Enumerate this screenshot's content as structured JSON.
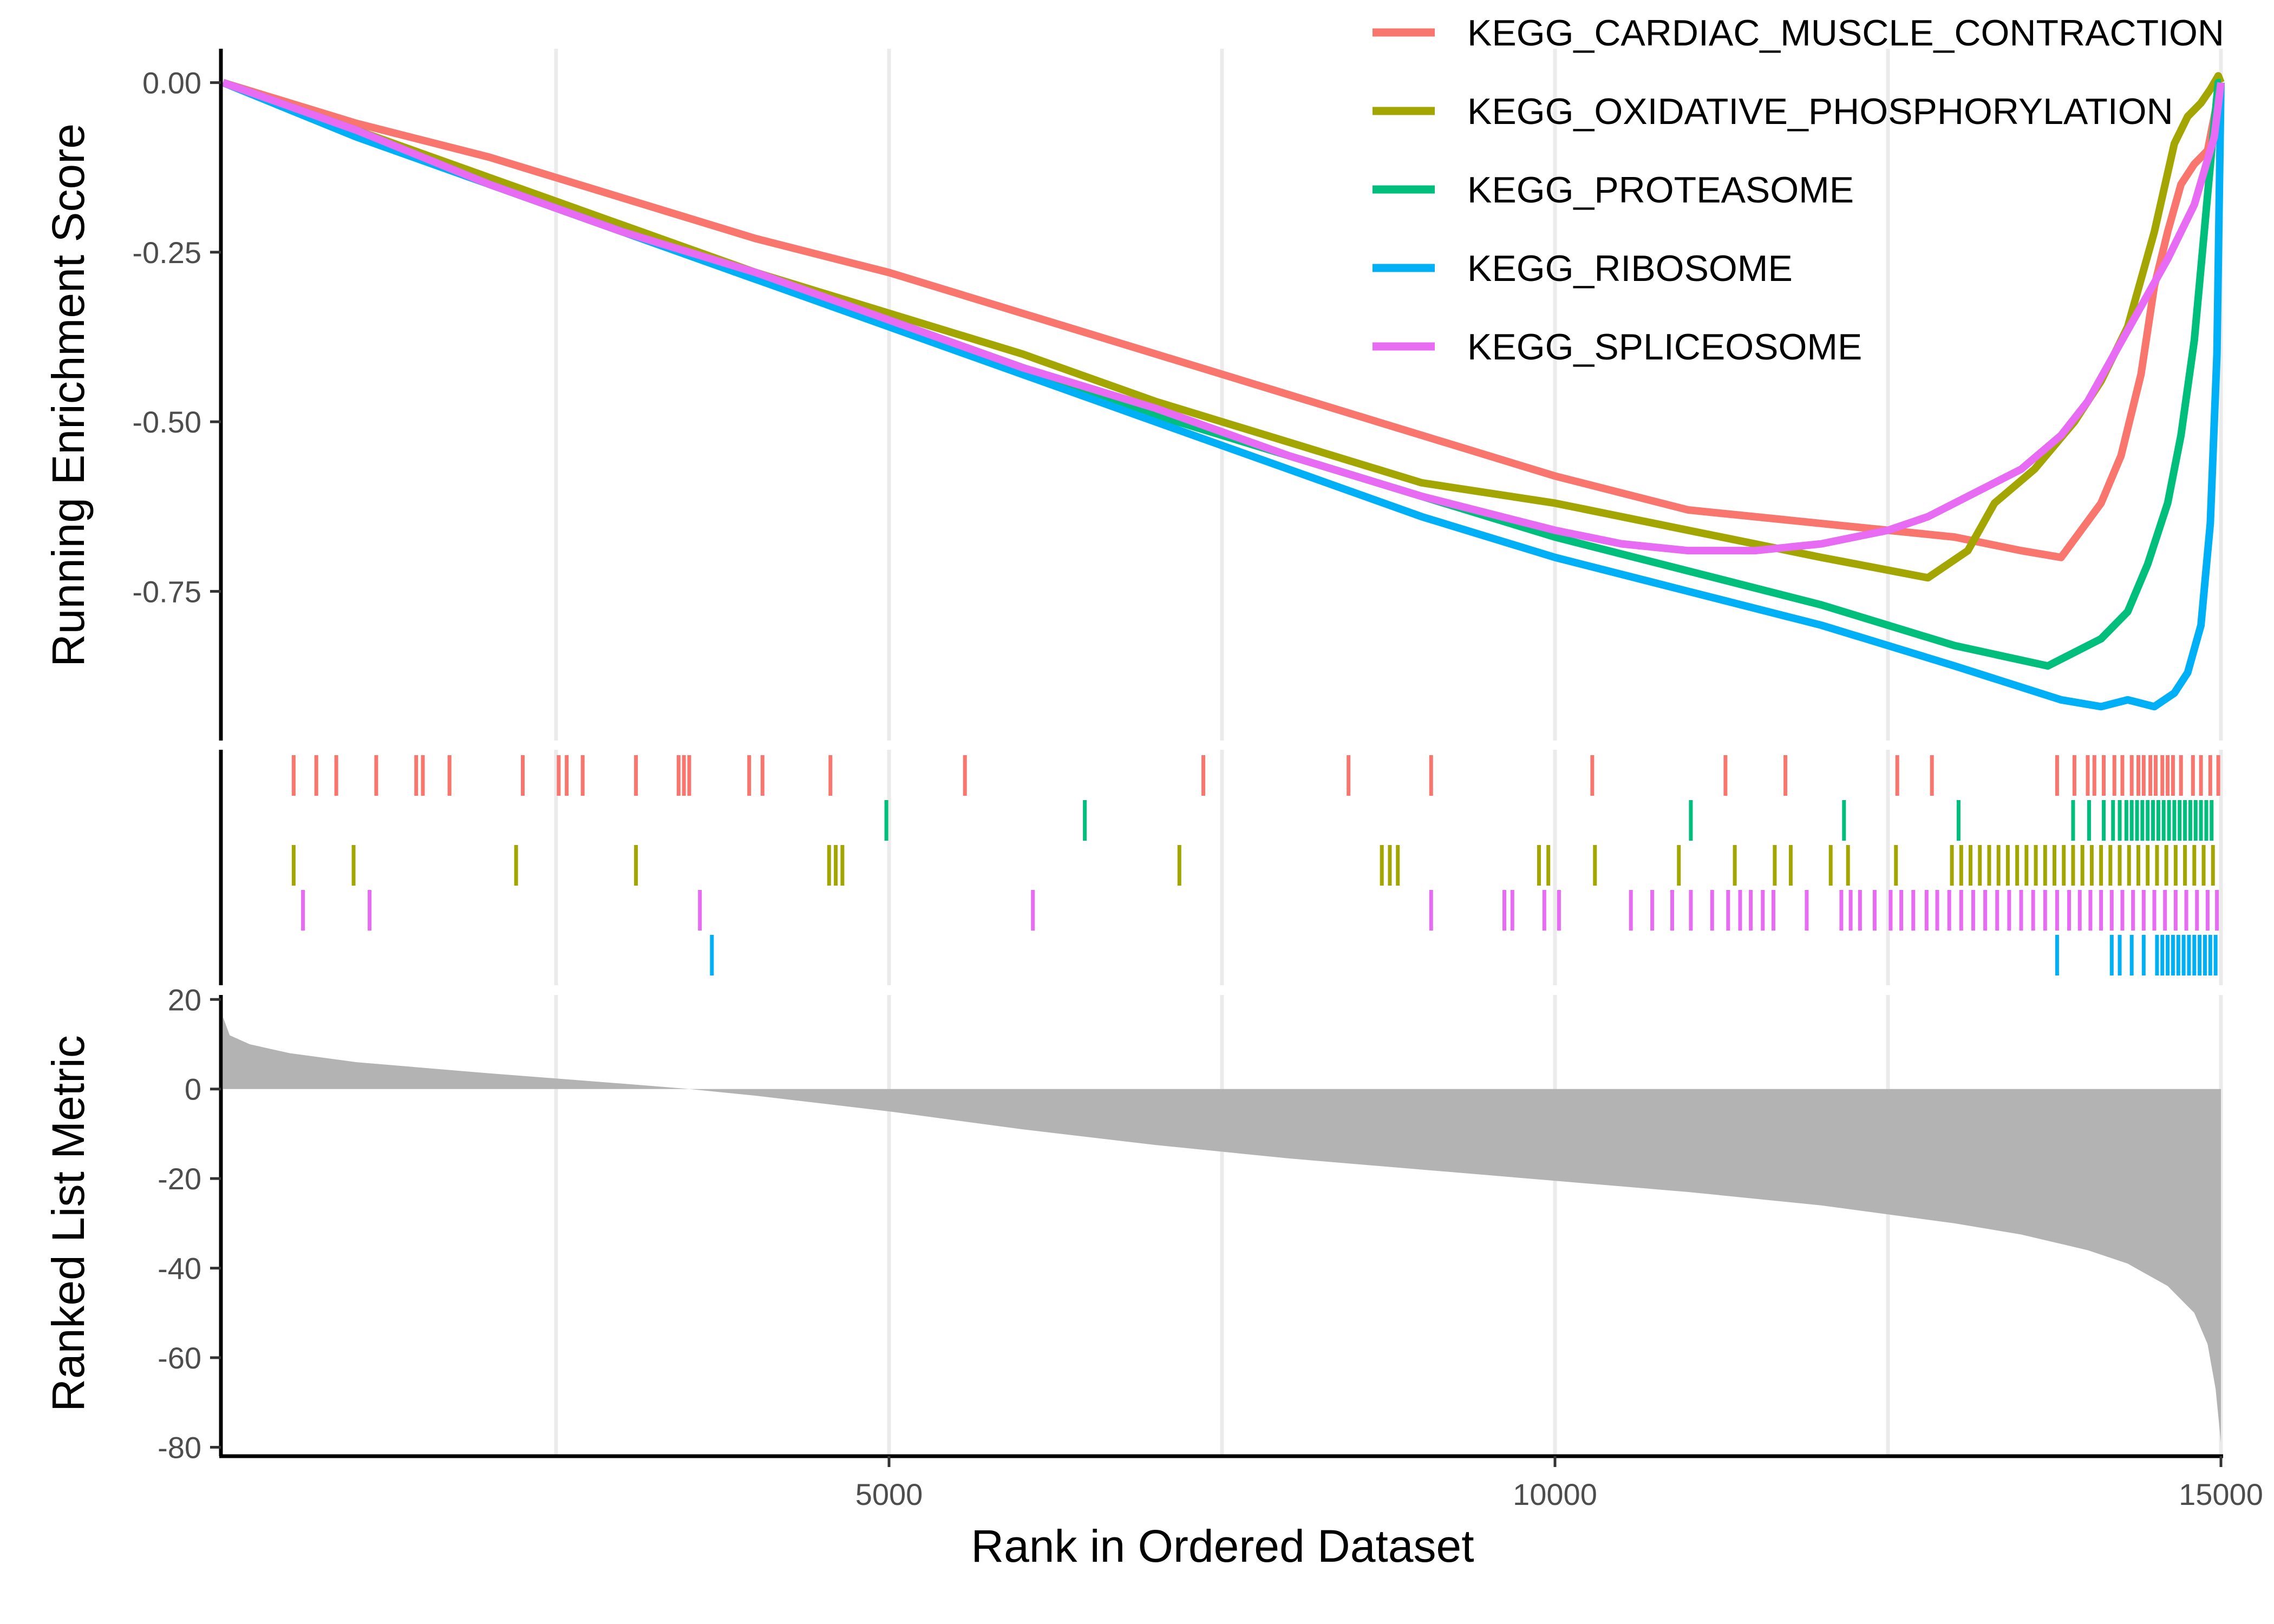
{
  "chart_data": {
    "type": "line",
    "subtype": "gsea-multi-panel",
    "xlabel": "Rank in Ordered Dataset",
    "xlim": [
      0,
      15000
    ],
    "x_ticks": [
      5000,
      10000,
      15000
    ],
    "x_gridlines": [
      2500,
      5000,
      7500,
      10000,
      12500,
      15000
    ],
    "grid": "vertical-major",
    "legend_position": "top-right",
    "panels": {
      "running_es": {
        "ylabel": "Running Enrichment Score",
        "ylim": [
          -0.97,
          0.05
        ],
        "y_ticks": [
          0.0,
          -0.25,
          -0.5,
          -0.75
        ],
        "y_tick_labels": [
          "0.00",
          "-0.25",
          "-0.50",
          "-0.75"
        ]
      },
      "hits": {
        "rows_top_to_bottom": [
          "KEGG_CARDIAC_MUSCLE_CONTRACTION",
          "KEGG_PROTEASOME",
          "KEGG_OXIDATIVE_PHOSPHORYLATION",
          "KEGG_SPLICEOSOME",
          "KEGG_RIBOSOME"
        ]
      },
      "ranked_metric": {
        "ylabel": "Ranked List Metric",
        "ylim": [
          -82,
          21
        ],
        "y_ticks": [
          20,
          0,
          -20,
          -40,
          -60,
          -80
        ],
        "color": "#b3b3b3",
        "x": [
          0,
          50,
          200,
          500,
          1000,
          2000,
          3000,
          3500,
          4000,
          5000,
          6000,
          7000,
          8000,
          9000,
          10000,
          11000,
          12000,
          13000,
          13500,
          14000,
          14300,
          14600,
          14800,
          14900,
          14960,
          15000
        ],
        "values": [
          16,
          12,
          10,
          8,
          6,
          3.5,
          1.2,
          0,
          -1.5,
          -5,
          -9,
          -12.5,
          -15.5,
          -18,
          -20.5,
          -23,
          -26,
          -30,
          -32.5,
          -36,
          -39,
          -44,
          -50,
          -57,
          -67,
          -79
        ]
      }
    },
    "series": [
      {
        "name": "KEGG_CARDIAC_MUSCLE_CONTRACTION",
        "color": "#f8766d",
        "x": [
          0,
          1000,
          2000,
          3000,
          4000,
          5000,
          6000,
          7000,
          8000,
          9000,
          10000,
          11000,
          12000,
          13000,
          13500,
          13800,
          13950,
          14100,
          14250,
          14400,
          14500,
          14600,
          14700,
          14800,
          14900,
          14960,
          15000
        ],
        "values": [
          0,
          -0.06,
          -0.11,
          -0.17,
          -0.23,
          -0.28,
          -0.34,
          -0.4,
          -0.46,
          -0.52,
          -0.58,
          -0.63,
          -0.65,
          -0.67,
          -0.69,
          -0.7,
          -0.66,
          -0.62,
          -0.55,
          -0.43,
          -0.3,
          -0.22,
          -0.15,
          -0.12,
          -0.1,
          -0.04,
          0
        ]
      },
      {
        "name": "KEGG_OXIDATIVE_PHOSPHORYLATION",
        "color": "#a3a500",
        "x": [
          0,
          1000,
          2000,
          3000,
          4000,
          5000,
          6000,
          7000,
          8000,
          9000,
          10000,
          11000,
          12000,
          12800,
          13100,
          13300,
          13600,
          13900,
          14100,
          14300,
          14500,
          14650,
          14750,
          14850,
          14920,
          14980,
          15000
        ],
        "values": [
          0,
          -0.07,
          -0.14,
          -0.21,
          -0.28,
          -0.34,
          -0.4,
          -0.47,
          -0.53,
          -0.59,
          -0.62,
          -0.66,
          -0.7,
          -0.73,
          -0.69,
          -0.62,
          -0.57,
          -0.5,
          -0.44,
          -0.36,
          -0.22,
          -0.09,
          -0.05,
          -0.03,
          -0.01,
          0.01,
          0
        ]
      },
      {
        "name": "KEGG_PROTEASOME",
        "color": "#00bf7d",
        "x": [
          0,
          1000,
          2000,
          3000,
          4000,
          5000,
          6000,
          7000,
          8000,
          9000,
          10000,
          11000,
          12000,
          13000,
          13700,
          13900,
          14100,
          14300,
          14450,
          14600,
          14700,
          14800,
          14870,
          14930,
          14980,
          15000
        ],
        "values": [
          0,
          -0.07,
          -0.15,
          -0.22,
          -0.29,
          -0.35,
          -0.42,
          -0.49,
          -0.55,
          -0.61,
          -0.67,
          -0.72,
          -0.77,
          -0.83,
          -0.86,
          -0.84,
          -0.82,
          -0.78,
          -0.71,
          -0.62,
          -0.52,
          -0.38,
          -0.23,
          -0.1,
          0.0,
          0
        ]
      },
      {
        "name": "KEGG_RIBOSOME",
        "color": "#00b0f6",
        "x": [
          0,
          1000,
          2000,
          3000,
          4000,
          5000,
          6000,
          7000,
          8000,
          9000,
          10000,
          11000,
          12000,
          13000,
          13800,
          14100,
          14300,
          14500,
          14650,
          14750,
          14850,
          14920,
          14970,
          15000
        ],
        "values": [
          0,
          -0.08,
          -0.15,
          -0.22,
          -0.29,
          -0.36,
          -0.43,
          -0.5,
          -0.57,
          -0.64,
          -0.7,
          -0.75,
          -0.8,
          -0.86,
          -0.91,
          -0.92,
          -0.91,
          -0.92,
          -0.9,
          -0.87,
          -0.8,
          -0.65,
          -0.4,
          0
        ]
      },
      {
        "name": "KEGG_SPLICEOSOME",
        "color": "#e76bf3",
        "x": [
          0,
          1000,
          2000,
          3000,
          4000,
          5000,
          6000,
          7000,
          8000,
          9000,
          10000,
          10500,
          11000,
          11500,
          12000,
          12500,
          12800,
          13200,
          13500,
          13800,
          14000,
          14200,
          14400,
          14600,
          14800,
          14950,
          15000
        ],
        "values": [
          0,
          -0.07,
          -0.15,
          -0.22,
          -0.28,
          -0.35,
          -0.42,
          -0.48,
          -0.55,
          -0.61,
          -0.66,
          -0.68,
          -0.69,
          -0.69,
          -0.68,
          -0.66,
          -0.64,
          -0.6,
          -0.57,
          -0.52,
          -0.47,
          -0.4,
          -0.33,
          -0.26,
          -0.18,
          -0.08,
          0
        ]
      }
    ],
    "hit_ranks": {
      "KEGG_CARDIAC_MUSCLE_CONTRACTION": [
        530,
        700,
        850,
        1150,
        1450,
        1500,
        1700,
        2250,
        2520,
        2580,
        2700,
        3100,
        3420,
        3460,
        3500,
        3950,
        4050,
        4560,
        5570,
        7360,
        8450,
        9070,
        10280,
        11280,
        11730,
        12570,
        12830,
        13770,
        13900,
        14000,
        14050,
        14120,
        14200,
        14260,
        14330,
        14380,
        14420,
        14470,
        14510,
        14560,
        14600,
        14640,
        14700,
        14790,
        14850,
        14920,
        14980
      ],
      "KEGG_PROTEASOME": [
        4980,
        6470,
        11020,
        12170,
        13030,
        13890,
        14010,
        14120,
        14190,
        14240,
        14290,
        14330,
        14370,
        14410,
        14450,
        14490,
        14530,
        14570,
        14610,
        14650,
        14690,
        14730,
        14770,
        14810,
        14850,
        14890,
        14930
      ],
      "KEGG_OXIDATIVE_PHOSPHORYLATION": [
        530,
        980,
        2200,
        3100,
        4550,
        4600,
        4650,
        7180,
        8700,
        8760,
        8820,
        9880,
        9950,
        10300,
        10930,
        11350,
        11650,
        11770,
        12070,
        12200,
        12560,
        12980,
        13050,
        13120,
        13190,
        13260,
        13330,
        13400,
        13470,
        13540,
        13610,
        13680,
        13750,
        13820,
        13890,
        13960,
        14030,
        14100,
        14170,
        14240,
        14310,
        14380,
        14450,
        14520,
        14590,
        14660,
        14730,
        14800,
        14870,
        14940
      ],
      "KEGG_SPLICEOSOME": [
        600,
        1100,
        3580,
        6080,
        9070,
        9620,
        9680,
        9920,
        10030,
        10570,
        10730,
        10880,
        11020,
        11180,
        11300,
        11390,
        11470,
        11560,
        11640,
        11890,
        12150,
        12220,
        12290,
        12400,
        12520,
        12600,
        12690,
        12790,
        12870,
        12960,
        13050,
        13140,
        13230,
        13320,
        13410,
        13500,
        13590,
        13680,
        13770,
        13860,
        13940,
        14020,
        14100,
        14180,
        14260,
        14340,
        14420,
        14500,
        14580,
        14660,
        14740,
        14820,
        14900,
        14970
      ],
      "KEGG_RIBOSOME": [
        3670,
        13770,
        14180,
        14240,
        14330,
        14420,
        14520,
        14560,
        14600,
        14640,
        14680,
        14720,
        14760,
        14800,
        14840,
        14880,
        14920,
        14960
      ]
    }
  }
}
